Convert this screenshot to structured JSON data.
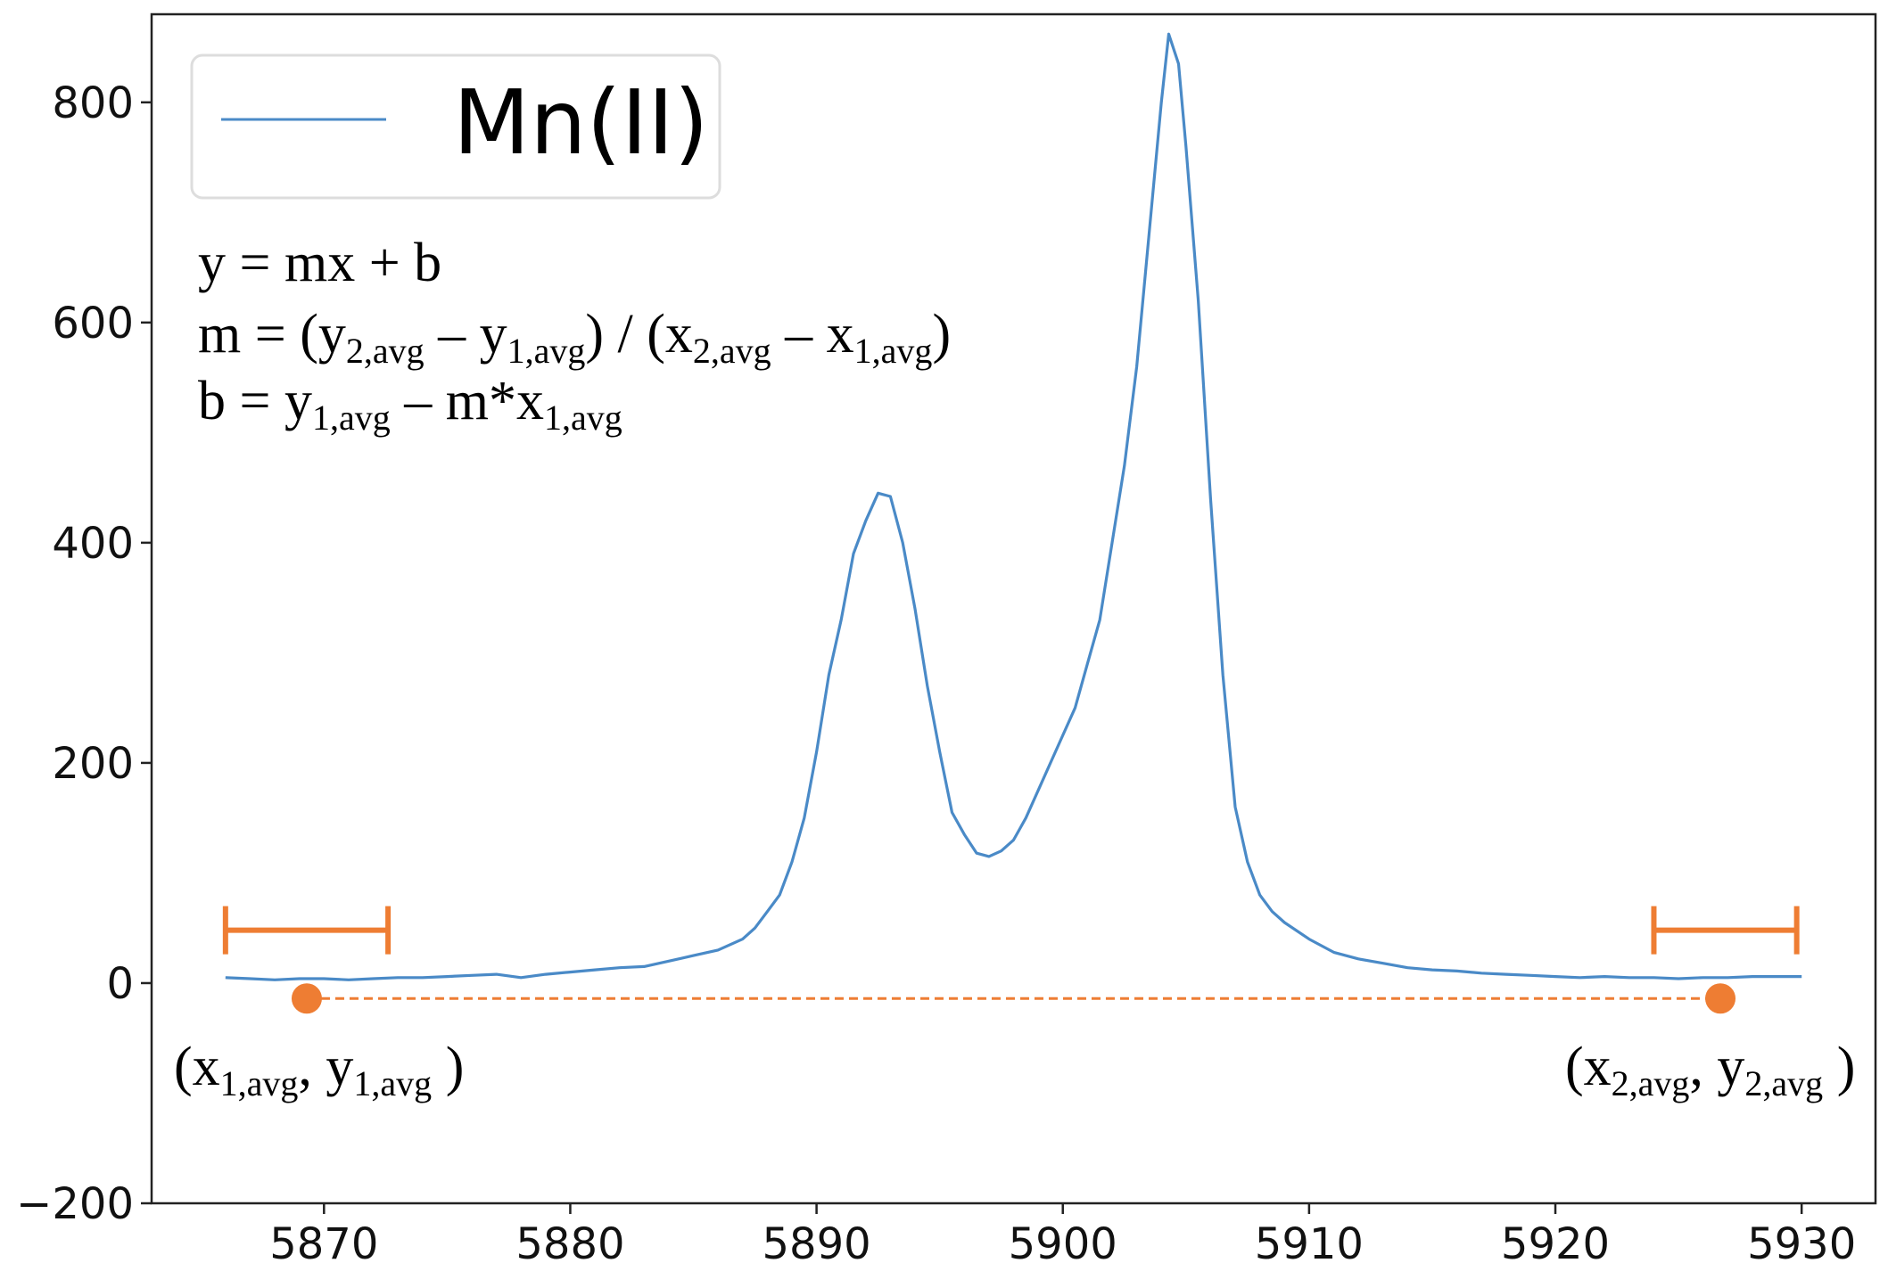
{
  "chart_data": {
    "type": "line",
    "xlim": [
      5863,
      5933
    ],
    "ylim": [
      -200,
      880
    ],
    "x_ticks": [
      5870,
      5880,
      5890,
      5900,
      5910,
      5920,
      5930
    ],
    "y_ticks": [
      -200,
      0,
      200,
      400,
      600,
      800
    ],
    "x_tick_labels": [
      "5870",
      "5880",
      "5890",
      "5900",
      "5910",
      "5920",
      "5930"
    ],
    "y_tick_labels": [
      "−200",
      "0",
      "200",
      "400",
      "600",
      "800"
    ],
    "grid": false,
    "legend_position": "top-left",
    "series": [
      {
        "name": "Mn(II)",
        "color": "#4a8ac7",
        "points": [
          [
            5866,
            5
          ],
          [
            5867,
            4
          ],
          [
            5868,
            3
          ],
          [
            5869,
            4
          ],
          [
            5870,
            4
          ],
          [
            5871,
            3
          ],
          [
            5872,
            4
          ],
          [
            5873,
            5
          ],
          [
            5874,
            5
          ],
          [
            5875,
            6
          ],
          [
            5876,
            7
          ],
          [
            5877,
            8
          ],
          [
            5878,
            5
          ],
          [
            5879,
            8
          ],
          [
            5880,
            10
          ],
          [
            5881,
            12
          ],
          [
            5882,
            14
          ],
          [
            5883,
            15
          ],
          [
            5884,
            20
          ],
          [
            5885,
            25
          ],
          [
            5886,
            30
          ],
          [
            5887,
            40
          ],
          [
            5887.5,
            50
          ],
          [
            5888,
            65
          ],
          [
            5888.5,
            80
          ],
          [
            5889,
            110
          ],
          [
            5889.5,
            150
          ],
          [
            5890,
            210
          ],
          [
            5890.5,
            280
          ],
          [
            5891,
            330
          ],
          [
            5891.5,
            390
          ],
          [
            5892,
            420
          ],
          [
            5892.5,
            445
          ],
          [
            5893,
            442
          ],
          [
            5893.5,
            400
          ],
          [
            5894,
            340
          ],
          [
            5894.5,
            270
          ],
          [
            5895,
            210
          ],
          [
            5895.5,
            155
          ],
          [
            5896,
            135
          ],
          [
            5896.5,
            118
          ],
          [
            5897,
            115
          ],
          [
            5897.5,
            120
          ],
          [
            5898,
            130
          ],
          [
            5898.5,
            150
          ],
          [
            5899,
            175
          ],
          [
            5899.5,
            200
          ],
          [
            5900,
            225
          ],
          [
            5900.5,
            250
          ],
          [
            5901,
            290
          ],
          [
            5901.5,
            330
          ],
          [
            5902,
            400
          ],
          [
            5902.5,
            470
          ],
          [
            5903,
            560
          ],
          [
            5903.5,
            680
          ],
          [
            5904,
            800
          ],
          [
            5904.3,
            862
          ],
          [
            5904.7,
            835
          ],
          [
            5905,
            760
          ],
          [
            5905.5,
            620
          ],
          [
            5906,
            440
          ],
          [
            5906.5,
            280
          ],
          [
            5907,
            160
          ],
          [
            5907.5,
            110
          ],
          [
            5908,
            80
          ],
          [
            5908.5,
            65
          ],
          [
            5909,
            55
          ],
          [
            5910,
            40
          ],
          [
            5911,
            28
          ],
          [
            5912,
            22
          ],
          [
            5913,
            18
          ],
          [
            5914,
            14
          ],
          [
            5915,
            12
          ],
          [
            5916,
            11
          ],
          [
            5917,
            9
          ],
          [
            5918,
            8
          ],
          [
            5919,
            7
          ],
          [
            5920,
            6
          ],
          [
            5921,
            5
          ],
          [
            5922,
            6
          ],
          [
            5923,
            5
          ],
          [
            5924,
            5
          ],
          [
            5925,
            4
          ],
          [
            5926,
            5
          ],
          [
            5927,
            5
          ],
          [
            5928,
            6
          ],
          [
            5929,
            6
          ],
          [
            5930,
            6
          ]
        ]
      }
    ],
    "background_ranges": [
      {
        "x_from": 5866,
        "x_to": 5872.6,
        "y": 48,
        "color": "#ee7d33"
      },
      {
        "x_from": 5924,
        "x_to": 5929.8,
        "y": 48,
        "color": "#ee7d33"
      }
    ],
    "baseline": {
      "p1": {
        "x": 5869.3,
        "y": -14
      },
      "p2": {
        "x": 5926.7,
        "y": -14
      },
      "color": "#ee7d33",
      "style": "dashed"
    }
  },
  "legend": {
    "label": "Mn(II)"
  },
  "formulas": [
    [
      "y = mx + b"
    ],
    [
      "m = (y",
      "2,avg",
      " – y",
      "1,avg",
      ") / (x",
      "2,avg",
      " – x",
      "1,avg",
      ")"
    ],
    [
      "b = y",
      "1,avg",
      " – m*x",
      "1,avg"
    ]
  ],
  "point_labels": {
    "p1": [
      "(x",
      "1,avg",
      ", y",
      "1,avg",
      " )"
    ],
    "p2": [
      "(x",
      "2,avg",
      ", y",
      "2,avg",
      " )"
    ]
  }
}
